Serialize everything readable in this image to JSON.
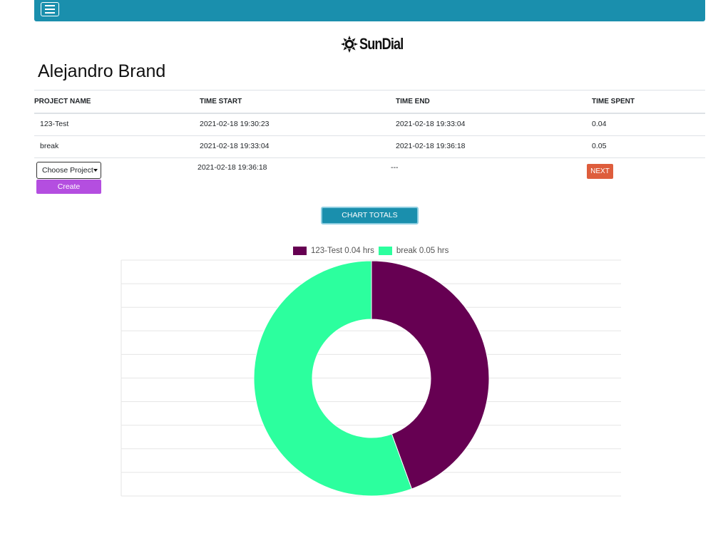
{
  "nav": {
    "menu_label": "menu"
  },
  "logo": {
    "text": "SunDial"
  },
  "user": {
    "name": "Alejandro Brand"
  },
  "table": {
    "headers": [
      "PROJECT NAME",
      "TIME START",
      "TIME END",
      "TIME SPENT"
    ],
    "rows": [
      {
        "project": "123-Test",
        "start": "2021-02-18 19:30:23",
        "end": "2021-02-18 19:33:04",
        "spent": "0.04"
      },
      {
        "project": "break",
        "start": "2021-02-18 19:33:04",
        "end": "2021-02-18 19:36:18",
        "spent": "0.05"
      }
    ],
    "new_entry": {
      "choose_label": "Choose Project",
      "create_label": "Create",
      "start": "2021-02-18 19:36:18",
      "end": "---",
      "next_label": "NEXT"
    }
  },
  "buttons": {
    "chart_totals": "CHART TOTALS"
  },
  "colors": {
    "nav": "#1a8fad",
    "create": "#b44ee0",
    "next": "#de5d3c"
  },
  "chart_data": {
    "type": "pie",
    "donut": true,
    "categories": [
      "123-Test",
      "break"
    ],
    "values": [
      0.04,
      0.05
    ],
    "legend": [
      "123-Test 0.04 hrs",
      "break 0.05 hrs"
    ],
    "colors": [
      "#660052",
      "#2cff9e"
    ],
    "legend_position": "top",
    "grid": true
  }
}
